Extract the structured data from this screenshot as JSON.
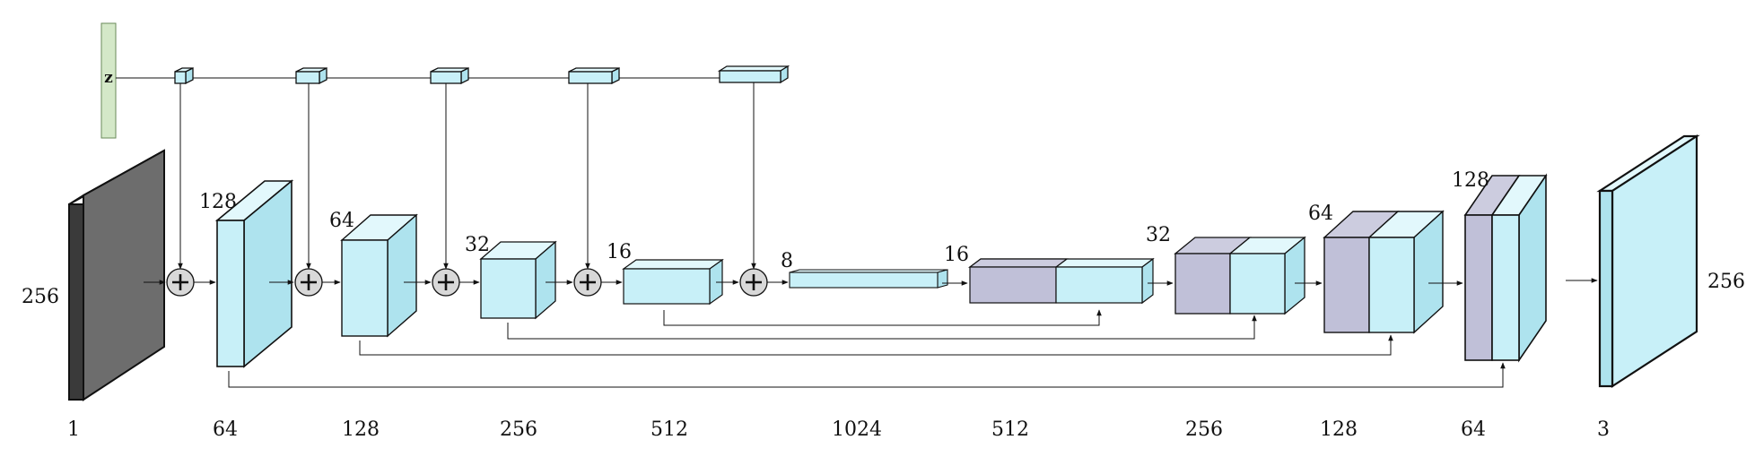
{
  "colors": {
    "tensor": "#c8f0f8",
    "tensor_top": "#e2f8fc",
    "tensor_side": "#aee3ee",
    "skip": "#c0c0d8",
    "skip_top": "#ccccdf",
    "input": "#6d6d6d",
    "input_top": "#555555",
    "input_side": "#3a3a3a",
    "noise": "#d4e8c8",
    "plus": "#d8d8d8"
  },
  "noise": {
    "label": "z"
  },
  "spatial_labels": {
    "input": "256",
    "enc1": "128",
    "enc2": "64",
    "enc3": "32",
    "enc4": "16",
    "bottleneck": "8",
    "dec1": "16",
    "dec2": "32",
    "dec3": "64",
    "dec4": "128",
    "output": "256"
  },
  "channel_labels": [
    "1",
    "64",
    "128",
    "256",
    "512",
    "1024",
    "512",
    "256",
    "128",
    "64",
    "3"
  ],
  "icons": {
    "plus": "plus-circle-icon"
  }
}
